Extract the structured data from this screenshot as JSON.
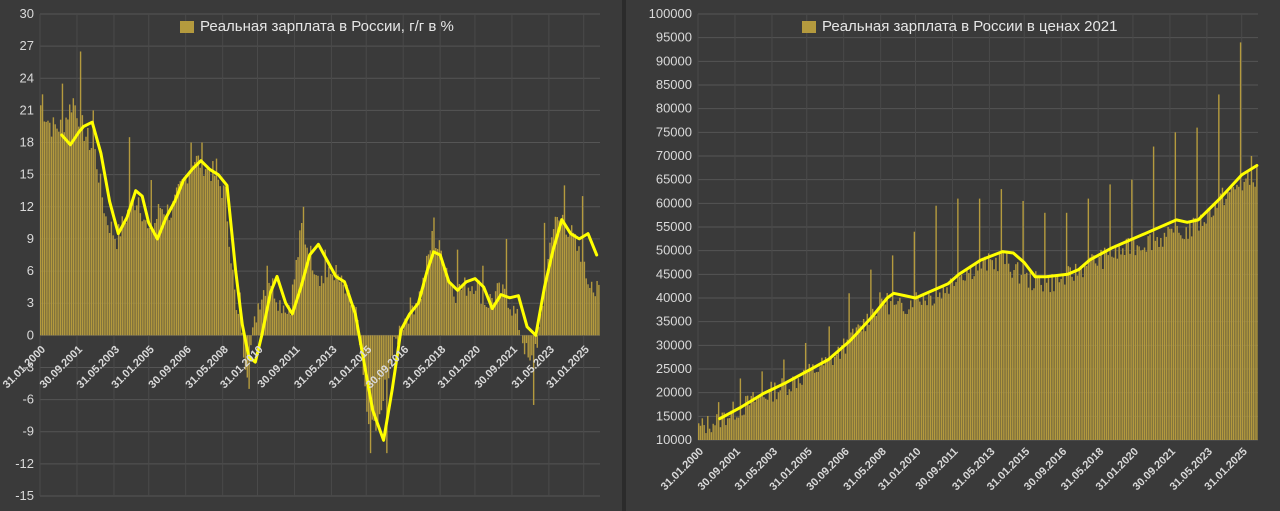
{
  "chart_data": [
    {
      "type": "bar",
      "legend": "Реальная зарплата в России, г/г в %",
      "ylim": [
        -15,
        30
      ],
      "yticks": [
        30,
        27,
        24,
        21,
        18,
        15,
        12,
        9,
        6,
        3,
        0,
        -3,
        -6,
        -9,
        -12,
        -15
      ],
      "xlim": [
        2000.0,
        2025.75
      ],
      "xticks": [
        "31.01.2000",
        "30.09.2001",
        "31.05.2003",
        "31.01.2005",
        "30.09.2006",
        "31.05.2008",
        "31.01.2010",
        "30.09.2011",
        "31.05.2013",
        "31.01.2015",
        "30.09.2016",
        "31.05.2018",
        "31.01.2020",
        "30.09.2021",
        "31.05.2023",
        "31.01.2025"
      ],
      "xtick_pos": [
        2000.0,
        2001.7,
        2003.4,
        2005.0,
        2006.7,
        2008.4,
        2010.0,
        2011.7,
        2013.4,
        2015.0,
        2016.7,
        2018.4,
        2020.0,
        2021.7,
        2023.4,
        2025.0
      ],
      "bars_series": {
        "name": "Реальная зарплата в России, г/г в %",
        "anchors": [
          [
            2000.0,
            21.5
          ],
          [
            2000.5,
            19.5
          ],
          [
            2001.0,
            19.5
          ],
          [
            2001.5,
            22.0
          ],
          [
            2002.0,
            19.0
          ],
          [
            2002.5,
            17.0
          ],
          [
            2003.0,
            11.0
          ],
          [
            2003.5,
            9.0
          ],
          [
            2004.0,
            11.5
          ],
          [
            2004.5,
            13.0
          ],
          [
            2005.0,
            9.0
          ],
          [
            2005.5,
            12.0
          ],
          [
            2006.0,
            11.5
          ],
          [
            2006.5,
            14.0
          ],
          [
            2007.0,
            16.5
          ],
          [
            2007.5,
            16.0
          ],
          [
            2008.0,
            15.0
          ],
          [
            2008.5,
            13.0
          ],
          [
            2009.0,
            2.0
          ],
          [
            2009.5,
            -3.0
          ],
          [
            2010.0,
            3.0
          ],
          [
            2010.5,
            5.5
          ],
          [
            2011.0,
            3.0
          ],
          [
            2011.5,
            3.0
          ],
          [
            2012.0,
            10.0
          ],
          [
            2012.5,
            7.0
          ],
          [
            2013.0,
            5.0
          ],
          [
            2013.5,
            6.0
          ],
          [
            2014.0,
            4.0
          ],
          [
            2014.5,
            2.0
          ],
          [
            2015.0,
            -7.0
          ],
          [
            2015.5,
            -9.0
          ],
          [
            2016.0,
            -3.0
          ],
          [
            2016.5,
            0.5
          ],
          [
            2017.0,
            2.5
          ],
          [
            2017.5,
            4.0
          ],
          [
            2018.0,
            9.0
          ],
          [
            2018.5,
            7.5
          ],
          [
            2019.0,
            4.0
          ],
          [
            2019.5,
            4.5
          ],
          [
            2020.0,
            5.0
          ],
          [
            2020.5,
            3.0
          ],
          [
            2021.0,
            4.0
          ],
          [
            2021.5,
            3.5
          ],
          [
            2022.0,
            1.0
          ],
          [
            2022.5,
            -3.0
          ],
          [
            2023.0,
            1.0
          ],
          [
            2023.5,
            10.0
          ],
          [
            2024.0,
            11.0
          ],
          [
            2024.5,
            9.0
          ],
          [
            2025.0,
            6.0
          ],
          [
            2025.5,
            4.0
          ]
        ],
        "spikes": [
          [
            2000.1,
            22.5
          ],
          [
            2001.0,
            23.5
          ],
          [
            2001.8,
            26.5
          ],
          [
            2002.4,
            21.0
          ],
          [
            2004.1,
            18.5
          ],
          [
            2005.1,
            14.5
          ],
          [
            2006.9,
            18.0
          ],
          [
            2007.4,
            18.0
          ],
          [
            2008.1,
            16.5
          ],
          [
            2009.2,
            4.0
          ],
          [
            2009.6,
            -5.0
          ],
          [
            2010.4,
            6.5
          ],
          [
            2011.3,
            2.0
          ],
          [
            2012.1,
            12.0
          ],
          [
            2013.1,
            8.0
          ],
          [
            2015.2,
            -11.0
          ],
          [
            2015.9,
            -11.0
          ],
          [
            2018.1,
            11.0
          ],
          [
            2019.2,
            8.0
          ],
          [
            2020.3,
            6.5
          ],
          [
            2021.4,
            9.0
          ],
          [
            2022.7,
            -6.5
          ],
          [
            2023.2,
            10.5
          ],
          [
            2024.1,
            14.0
          ],
          [
            2024.9,
            13.0
          ],
          [
            2025.3,
            5.0
          ]
        ]
      },
      "trend_series": {
        "name": "trend",
        "points": [
          [
            2001.0,
            18.7
          ],
          [
            2001.4,
            17.8
          ],
          [
            2001.8,
            19.0
          ],
          [
            2002.0,
            19.5
          ],
          [
            2002.4,
            19.9
          ],
          [
            2002.8,
            17.0
          ],
          [
            2003.2,
            12.5
          ],
          [
            2003.6,
            9.5
          ],
          [
            2004.0,
            11.0
          ],
          [
            2004.4,
            13.5
          ],
          [
            2004.7,
            13.0
          ],
          [
            2005.0,
            10.5
          ],
          [
            2005.4,
            9.0
          ],
          [
            2005.8,
            11.0
          ],
          [
            2006.2,
            12.5
          ],
          [
            2006.6,
            14.5
          ],
          [
            2007.0,
            15.5
          ],
          [
            2007.4,
            16.3
          ],
          [
            2007.8,
            15.5
          ],
          [
            2008.2,
            15.0
          ],
          [
            2008.6,
            14.0
          ],
          [
            2009.0,
            6.0
          ],
          [
            2009.3,
            1.0
          ],
          [
            2009.6,
            -2.0
          ],
          [
            2009.9,
            -2.5
          ],
          [
            2010.2,
            0.0
          ],
          [
            2010.6,
            4.0
          ],
          [
            2010.9,
            5.5
          ],
          [
            2011.3,
            3.0
          ],
          [
            2011.6,
            2.0
          ],
          [
            2012.0,
            4.5
          ],
          [
            2012.4,
            7.5
          ],
          [
            2012.8,
            8.5
          ],
          [
            2013.2,
            7.0
          ],
          [
            2013.6,
            5.5
          ],
          [
            2014.0,
            5.0
          ],
          [
            2014.5,
            2.0
          ],
          [
            2014.9,
            -2.5
          ],
          [
            2015.3,
            -7.0
          ],
          [
            2015.8,
            -9.8
          ],
          [
            2016.2,
            -5.0
          ],
          [
            2016.6,
            0.5
          ],
          [
            2017.0,
            2.0
          ],
          [
            2017.4,
            3.0
          ],
          [
            2017.8,
            6.0
          ],
          [
            2018.1,
            7.8
          ],
          [
            2018.4,
            7.5
          ],
          [
            2018.8,
            5.0
          ],
          [
            2019.2,
            4.2
          ],
          [
            2019.6,
            5.0
          ],
          [
            2020.0,
            5.3
          ],
          [
            2020.4,
            4.5
          ],
          [
            2020.8,
            2.5
          ],
          [
            2021.2,
            3.8
          ],
          [
            2021.6,
            3.5
          ],
          [
            2022.0,
            3.7
          ],
          [
            2022.4,
            0.8
          ],
          [
            2022.8,
            0.0
          ],
          [
            2023.2,
            4.5
          ],
          [
            2023.6,
            8.0
          ],
          [
            2024.0,
            10.8
          ],
          [
            2024.4,
            9.5
          ],
          [
            2024.8,
            9.0
          ],
          [
            2025.2,
            9.5
          ],
          [
            2025.6,
            7.5
          ]
        ]
      },
      "bar_color": "#b49a3e",
      "trend_color": "#ffff00"
    },
    {
      "type": "bar",
      "legend": "Реальная зарплата в России в ценах 2021",
      "ylim": [
        10000,
        100000
      ],
      "yticks": [
        100000,
        95000,
        90000,
        85000,
        80000,
        75000,
        70000,
        65000,
        60000,
        55000,
        50000,
        45000,
        40000,
        35000,
        30000,
        25000,
        20000,
        15000,
        10000
      ],
      "xlim": [
        2000.0,
        2025.75
      ],
      "xticks": [
        "31.01.2000",
        "30.09.2001",
        "31.05.2003",
        "31.01.2005",
        "30.09.2006",
        "31.05.2008",
        "31.01.2010",
        "30.09.2011",
        "31.05.2013",
        "31.01.2015",
        "30.09.2016",
        "31.05.2018",
        "31.01.2020",
        "30.09.2021",
        "31.05.2023",
        "31.01.2025"
      ],
      "xtick_pos": [
        2000.0,
        2001.7,
        2003.4,
        2005.0,
        2006.7,
        2008.4,
        2010.0,
        2011.7,
        2013.4,
        2015.0,
        2016.7,
        2018.4,
        2020.0,
        2021.7,
        2023.4,
        2025.0
      ],
      "bars_series": {
        "name": "Реальная зарплата в России в ценах 2021",
        "anchors": [
          [
            2000.0,
            12500
          ],
          [
            2001.0,
            14500
          ],
          [
            2002.0,
            17000
          ],
          [
            2003.0,
            19500
          ],
          [
            2004.0,
            21500
          ],
          [
            2005.0,
            24000
          ],
          [
            2006.0,
            26500
          ],
          [
            2007.0,
            31000
          ],
          [
            2008.0,
            37000
          ],
          [
            2008.5,
            40000
          ],
          [
            2009.0,
            37500
          ],
          [
            2009.5,
            38500
          ],
          [
            2010.0,
            40000
          ],
          [
            2011.0,
            40500
          ],
          [
            2012.0,
            45000
          ],
          [
            2013.0,
            47000
          ],
          [
            2014.0,
            48000
          ],
          [
            2015.0,
            44000
          ],
          [
            2016.0,
            43000
          ],
          [
            2017.0,
            44500
          ],
          [
            2018.0,
            47500
          ],
          [
            2019.0,
            49000
          ],
          [
            2020.0,
            51000
          ],
          [
            2021.0,
            52500
          ],
          [
            2022.0,
            53000
          ],
          [
            2023.0,
            55500
          ],
          [
            2024.0,
            61000
          ],
          [
            2025.0,
            64000
          ],
          [
            2025.7,
            66000
          ]
        ],
        "spikes": [
          [
            2000.9,
            18000
          ],
          [
            2001.9,
            23000
          ],
          [
            2002.9,
            24500
          ],
          [
            2003.9,
            27000
          ],
          [
            2004.9,
            30500
          ],
          [
            2006.0,
            34000
          ],
          [
            2006.9,
            41000
          ],
          [
            2007.9,
            46000
          ],
          [
            2008.9,
            49000
          ],
          [
            2009.9,
            54000
          ],
          [
            2010.9,
            59500
          ],
          [
            2011.9,
            61000
          ],
          [
            2012.9,
            61000
          ],
          [
            2013.9,
            63000
          ],
          [
            2014.9,
            60500
          ],
          [
            2015.9,
            58000
          ],
          [
            2016.9,
            58000
          ],
          [
            2017.9,
            61000
          ],
          [
            2018.9,
            64000
          ],
          [
            2019.9,
            65000
          ],
          [
            2020.9,
            72000
          ],
          [
            2021.9,
            75000
          ],
          [
            2022.9,
            76000
          ],
          [
            2023.9,
            83000
          ],
          [
            2024.9,
            94000
          ],
          [
            2025.4,
            70000
          ]
        ]
      },
      "trend_series": {
        "name": "trend",
        "points": [
          [
            2001.0,
            14500
          ],
          [
            2002.0,
            17000
          ],
          [
            2003.0,
            19800
          ],
          [
            2004.0,
            22000
          ],
          [
            2005.0,
            24500
          ],
          [
            2006.0,
            27000
          ],
          [
            2007.0,
            31000
          ],
          [
            2008.0,
            36000
          ],
          [
            2008.7,
            40000
          ],
          [
            2009.0,
            41000
          ],
          [
            2009.5,
            40500
          ],
          [
            2010.0,
            40000
          ],
          [
            2011.0,
            42000
          ],
          [
            2011.5,
            43000
          ],
          [
            2012.0,
            45000
          ],
          [
            2013.0,
            48000
          ],
          [
            2014.0,
            49800
          ],
          [
            2014.5,
            49500
          ],
          [
            2015.0,
            47500
          ],
          [
            2015.5,
            44500
          ],
          [
            2016.0,
            44500
          ],
          [
            2017.0,
            45000
          ],
          [
            2017.5,
            46000
          ],
          [
            2018.0,
            48000
          ],
          [
            2019.0,
            50500
          ],
          [
            2020.0,
            52500
          ],
          [
            2021.0,
            54500
          ],
          [
            2022.0,
            56500
          ],
          [
            2022.5,
            56000
          ],
          [
            2023.0,
            56500
          ],
          [
            2024.0,
            61000
          ],
          [
            2025.0,
            66000
          ],
          [
            2025.7,
            68000
          ]
        ]
      },
      "bar_color": "#b49a3e",
      "trend_color": "#ffff00"
    }
  ]
}
